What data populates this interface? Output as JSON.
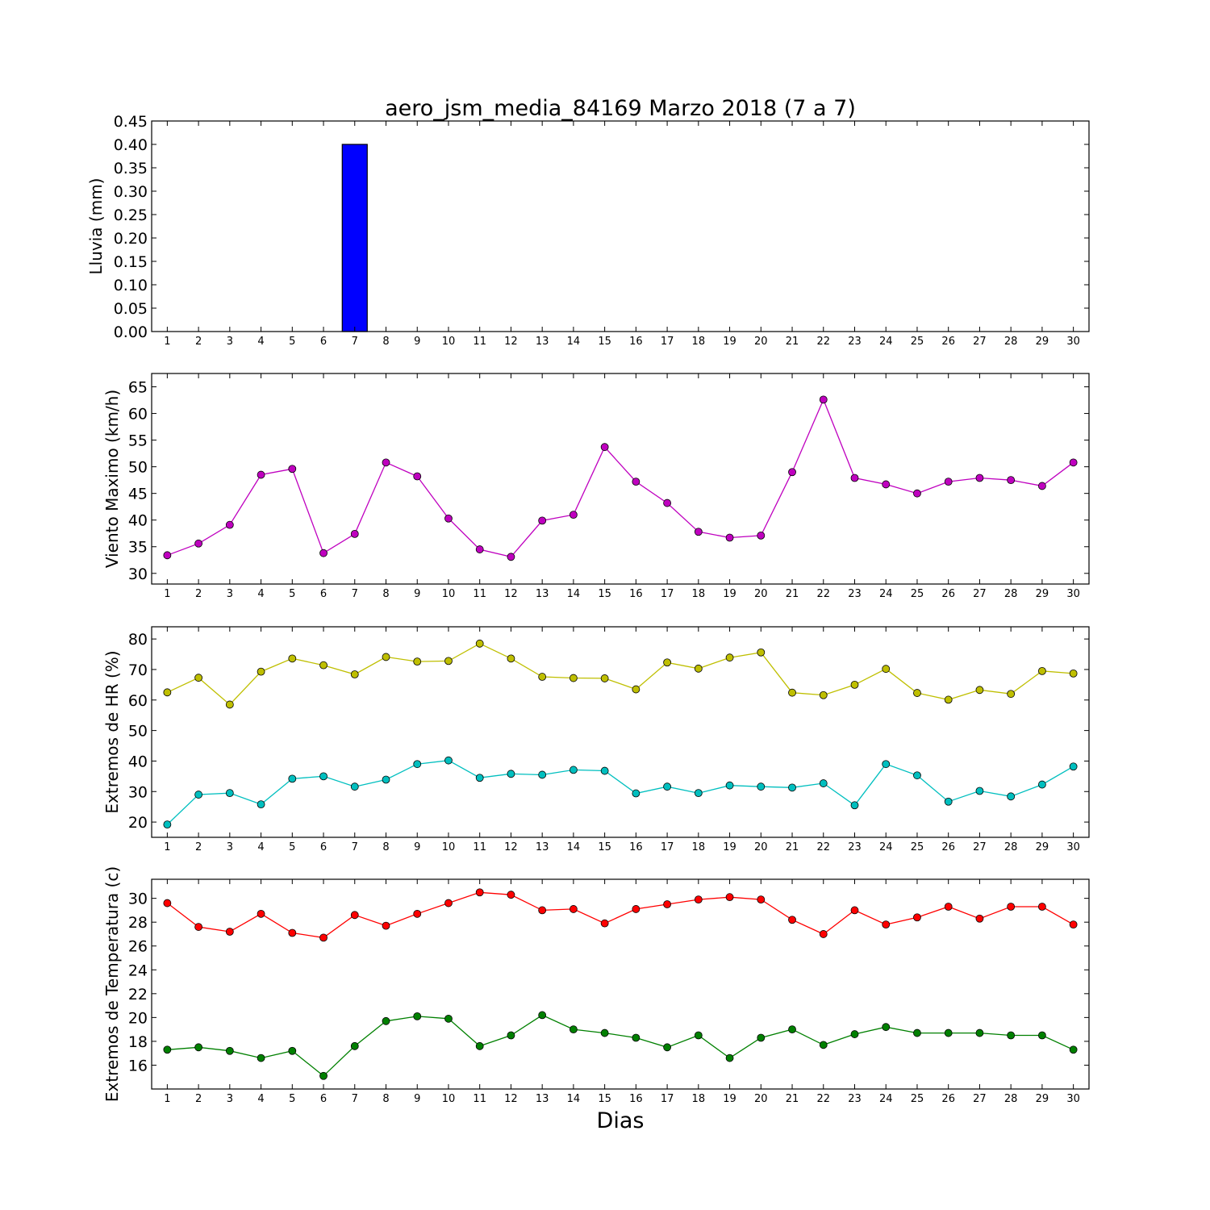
{
  "figure": {
    "title": "aero_jsm_media_84169 Marzo 2018  (7 a 7)",
    "xlabel": "Dias"
  },
  "chart_data": [
    {
      "type": "bar",
      "ylabel": "Lluvia (mm)",
      "x": [
        1,
        2,
        3,
        4,
        5,
        6,
        7,
        8,
        9,
        10,
        11,
        12,
        13,
        14,
        15,
        16,
        17,
        18,
        19,
        20,
        21,
        22,
        23,
        24,
        25,
        26,
        27,
        28,
        29,
        30
      ],
      "ylim": [
        0,
        0.45
      ],
      "yticks": [
        0.0,
        0.05,
        0.1,
        0.15,
        0.2,
        0.25,
        0.3,
        0.35,
        0.4,
        0.45
      ],
      "ytick_labels": [
        "0.00",
        "0.05",
        "0.10",
        "0.15",
        "0.20",
        "0.25",
        "0.30",
        "0.35",
        "0.40",
        "0.45"
      ],
      "series": [
        {
          "color": "#0000ff",
          "values": [
            0,
            0,
            0,
            0,
            0,
            0,
            0.4,
            0,
            0,
            0,
            0,
            0,
            0,
            0,
            0,
            0,
            0,
            0,
            0,
            0,
            0,
            0,
            0,
            0,
            0,
            0,
            0,
            0,
            0,
            0
          ]
        }
      ]
    },
    {
      "type": "line",
      "ylabel": "Viento Maximo (km/h)",
      "x": [
        1,
        2,
        3,
        4,
        5,
        6,
        7,
        8,
        9,
        10,
        11,
        12,
        13,
        14,
        15,
        16,
        17,
        18,
        19,
        20,
        21,
        22,
        23,
        24,
        25,
        26,
        27,
        28,
        29,
        30
      ],
      "ylim": [
        28,
        67.5
      ],
      "yticks": [
        30,
        35,
        40,
        45,
        50,
        55,
        60,
        65
      ],
      "ytick_labels": [
        "30",
        "35",
        "40",
        "45",
        "50",
        "55",
        "60",
        "65"
      ],
      "series": [
        {
          "color": "#bf00bf",
          "values": [
            33.4,
            35.6,
            39.1,
            48.5,
            49.6,
            33.8,
            37.4,
            50.8,
            48.2,
            40.3,
            34.5,
            33.1,
            39.9,
            41.0,
            53.7,
            47.2,
            43.2,
            37.8,
            36.7,
            37.1,
            49.0,
            62.6,
            47.9,
            46.7,
            45.0,
            47.2,
            47.9,
            47.5,
            46.4,
            50.8
          ]
        }
      ]
    },
    {
      "type": "line",
      "ylabel": "Extremos de HR (%)",
      "x": [
        1,
        2,
        3,
        4,
        5,
        6,
        7,
        8,
        9,
        10,
        11,
        12,
        13,
        14,
        15,
        16,
        17,
        18,
        19,
        20,
        21,
        22,
        23,
        24,
        25,
        26,
        27,
        28,
        29,
        30
      ],
      "ylim": [
        15,
        84
      ],
      "yticks": [
        20,
        30,
        40,
        50,
        60,
        70,
        80
      ],
      "ytick_labels": [
        "20",
        "30",
        "40",
        "50",
        "60",
        "70",
        "80"
      ],
      "series": [
        {
          "color": "#bfbf00",
          "values": [
            62.5,
            67.3,
            58.5,
            69.3,
            73.6,
            71.4,
            68.4,
            74.1,
            72.6,
            72.8,
            78.5,
            73.6,
            67.6,
            67.2,
            67.1,
            63.5,
            72.3,
            70.3,
            73.9,
            75.6,
            62.4,
            61.6,
            65.0,
            70.2,
            62.3,
            60.1,
            63.3,
            62.0,
            69.5,
            68.7
          ]
        },
        {
          "color": "#00bfbf",
          "values": [
            19.2,
            29.0,
            29.5,
            25.8,
            34.2,
            35.0,
            31.6,
            33.9,
            39.0,
            40.2,
            34.5,
            35.8,
            35.5,
            37.1,
            36.8,
            29.4,
            31.6,
            29.5,
            32.0,
            31.6,
            31.3,
            32.7,
            25.5,
            39.0,
            35.3,
            26.7,
            30.2,
            28.4,
            32.3,
            38.2
          ]
        }
      ]
    },
    {
      "type": "line",
      "ylabel": "Extremos de Temperatura (c)",
      "x": [
        1,
        2,
        3,
        4,
        5,
        6,
        7,
        8,
        9,
        10,
        11,
        12,
        13,
        14,
        15,
        16,
        17,
        18,
        19,
        20,
        21,
        22,
        23,
        24,
        25,
        26,
        27,
        28,
        29,
        30
      ],
      "ylim": [
        14,
        31.6
      ],
      "yticks": [
        16,
        18,
        20,
        22,
        24,
        26,
        28,
        30
      ],
      "ytick_labels": [
        "16",
        "18",
        "20",
        "22",
        "24",
        "26",
        "28",
        "30"
      ],
      "series": [
        {
          "color": "#ff0000",
          "values": [
            29.6,
            27.6,
            27.2,
            28.7,
            27.1,
            26.7,
            28.6,
            27.7,
            28.7,
            29.6,
            30.5,
            30.3,
            29.0,
            29.1,
            27.9,
            29.1,
            29.5,
            29.9,
            30.1,
            29.9,
            28.2,
            27.0,
            29.0,
            27.8,
            28.4,
            29.3,
            28.3,
            29.3,
            29.3,
            27.8
          ]
        },
        {
          "color": "#008000",
          "values": [
            17.3,
            17.5,
            17.2,
            16.6,
            17.2,
            15.1,
            17.6,
            19.7,
            20.1,
            19.9,
            17.6,
            18.5,
            20.2,
            19.0,
            18.7,
            18.3,
            17.5,
            18.5,
            16.6,
            18.3,
            19.0,
            17.7,
            18.6,
            19.2,
            18.7,
            18.7,
            18.7,
            18.5,
            18.5,
            17.3
          ]
        }
      ]
    }
  ]
}
